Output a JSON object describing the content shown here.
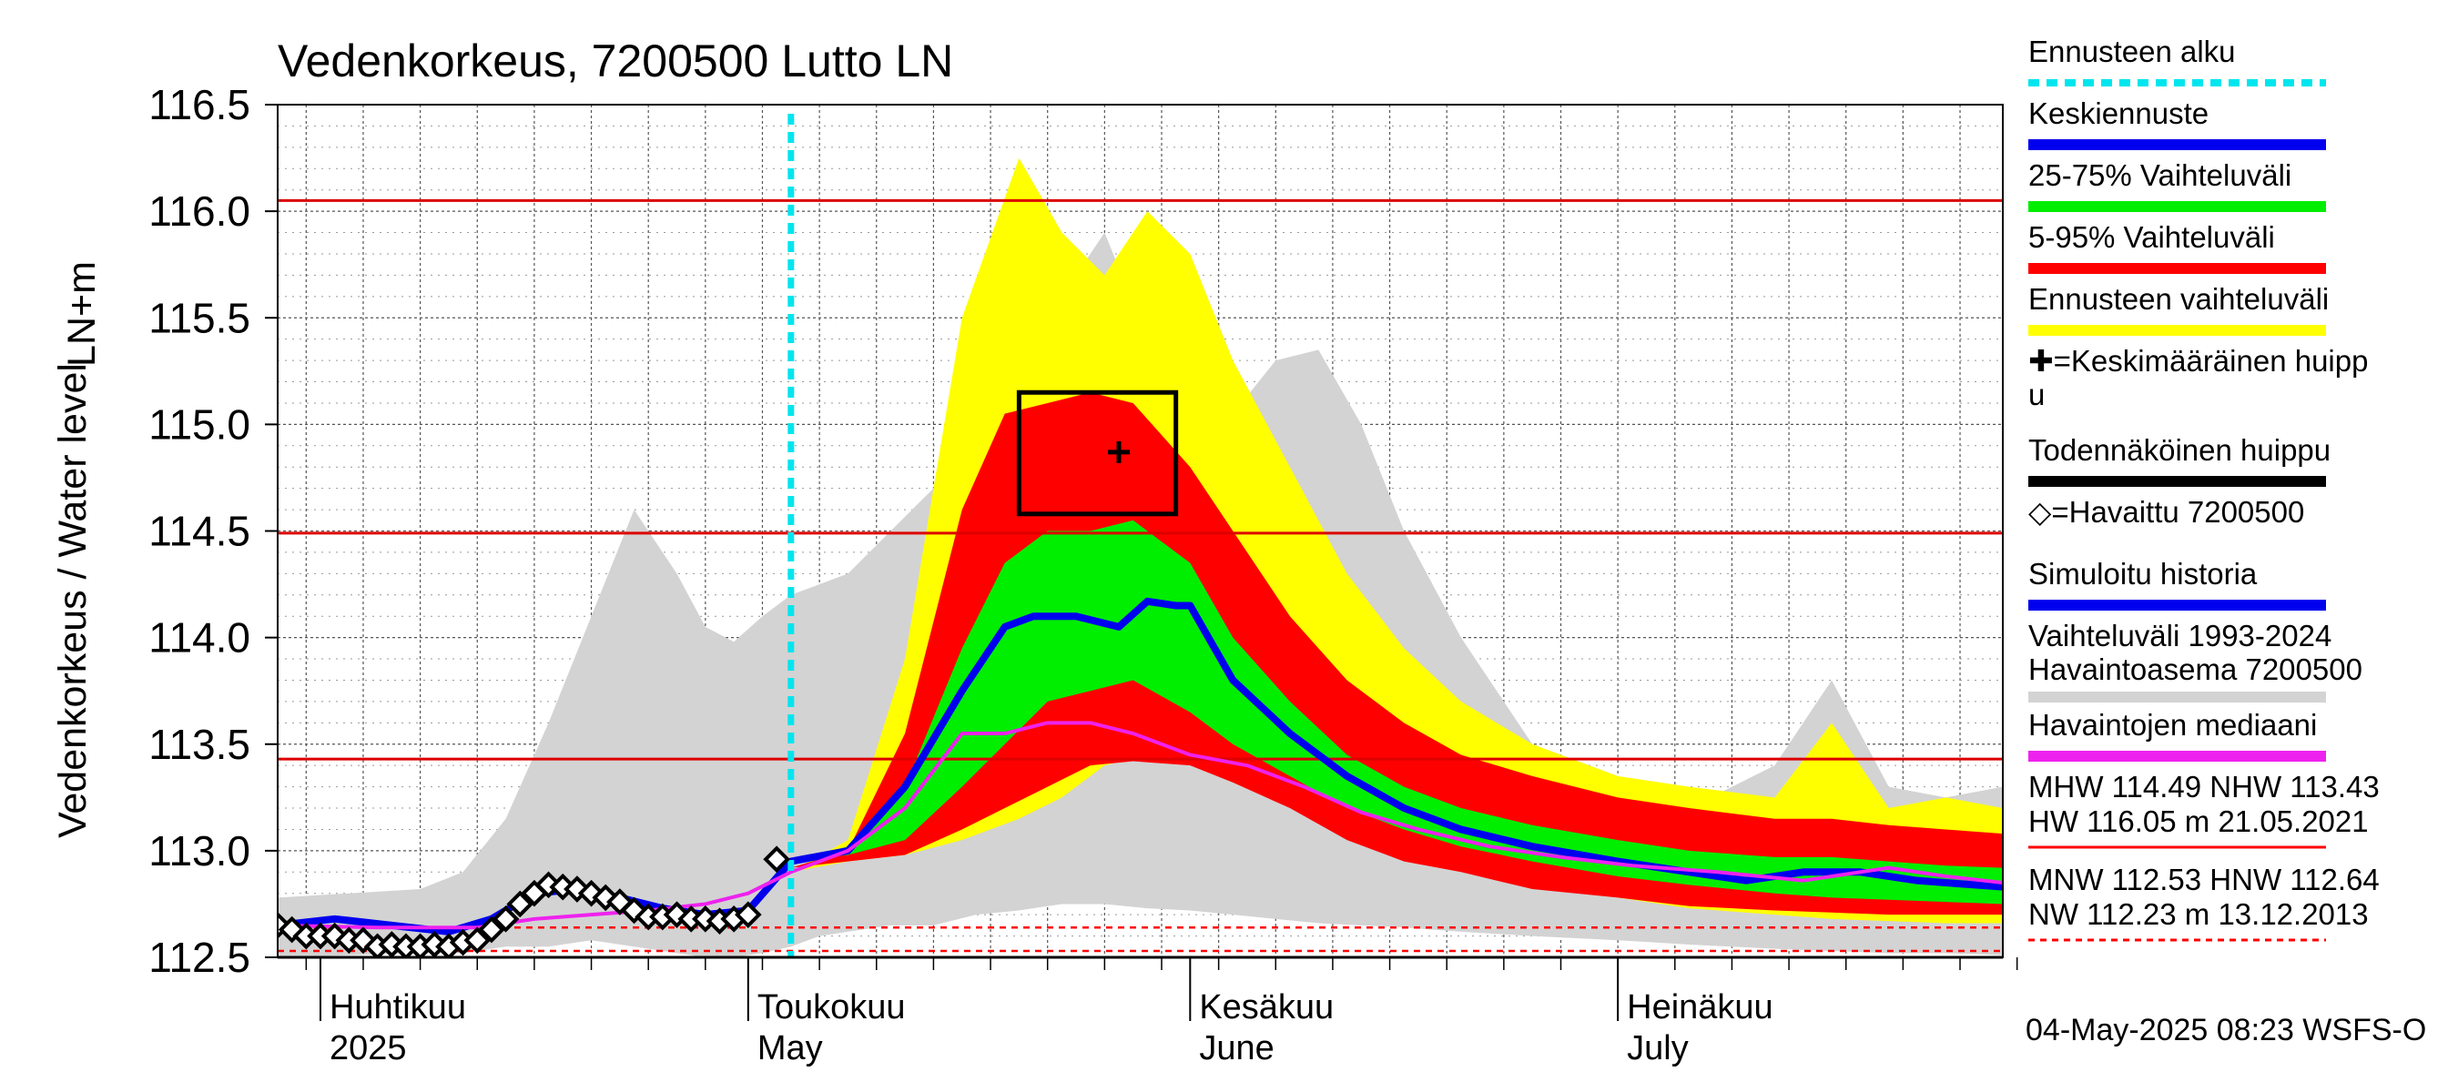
{
  "chart_data": {
    "type": "area",
    "title": "Vedenkorkeus, 7200500 Lutto LN",
    "ylabel_fi": "LN+m",
    "ylabel_en": "Vedenkorkeus / Water level",
    "ylim": [
      112.5,
      116.5
    ],
    "yticks": [
      "112.5",
      "113.0",
      "113.5",
      "114.0",
      "114.5",
      "115.0",
      "115.5",
      "116.0",
      "116.5"
    ],
    "xlim": [
      "2025-03-29",
      "2025-07-28"
    ],
    "grid": true,
    "forecast_start": "2025-05-04",
    "months": [
      {
        "fi": "Huhtikuu",
        "en": "2025",
        "date": "2025-04-01"
      },
      {
        "fi": "Toukokuu",
        "en": "May",
        "date": "2025-05-01"
      },
      {
        "fi": "Kesäkuu",
        "en": "June",
        "date": "2025-06-01"
      },
      {
        "fi": "Heinäkuu",
        "en": "July",
        "date": "2025-07-01"
      }
    ],
    "reference_lines": [
      {
        "name": "HW 116.05 m 21.05.2021",
        "value": 116.05,
        "style": "solid"
      },
      {
        "name": "MHW",
        "value": 114.49,
        "style": "solid"
      },
      {
        "name": "NHW",
        "value": 113.43,
        "style": "solid"
      },
      {
        "name": "HNW",
        "value": 112.64,
        "style": "dashed"
      },
      {
        "name": "MNW",
        "value": 112.53,
        "style": "dashed"
      }
    ],
    "probable_peak": {
      "x_start": "2025-05-20",
      "x_end": "2025-05-31",
      "y_low": 114.58,
      "y_high": 115.15
    },
    "mean_peak": {
      "x": "2025-05-27",
      "y": 114.87
    },
    "historical_range": {
      "x": [
        "2025-03-29",
        "2025-04-08",
        "2025-04-11",
        "2025-04-14",
        "2025-04-17",
        "2025-04-20",
        "2025-04-23",
        "2025-04-26",
        "2025-04-28",
        "2025-04-30",
        "2025-05-02",
        "2025-05-04",
        "2025-05-06",
        "2025-05-08",
        "2025-05-11",
        "2025-05-14",
        "2025-05-17",
        "2025-05-20",
        "2025-05-23",
        "2025-05-26",
        "2025-05-29",
        "2025-06-01",
        "2025-06-04",
        "2025-06-07",
        "2025-06-10",
        "2025-06-13",
        "2025-06-16",
        "2025-06-20",
        "2025-06-25",
        "2025-07-01",
        "2025-07-06",
        "2025-07-12",
        "2025-07-16",
        "2025-07-20",
        "2025-07-24",
        "2025-07-28"
      ],
      "high": [
        112.78,
        112.82,
        112.9,
        113.15,
        113.6,
        114.1,
        114.6,
        114.3,
        114.05,
        113.98,
        114.1,
        114.2,
        114.25,
        114.3,
        114.5,
        114.7,
        114.6,
        114.8,
        115.6,
        115.9,
        115.4,
        115.2,
        115.05,
        115.3,
        115.35,
        115.0,
        114.5,
        114.0,
        113.5,
        113.35,
        113.2,
        113.4,
        113.8,
        113.3,
        113.25,
        113.3
      ],
      "low": [
        112.5,
        112.52,
        112.52,
        112.55,
        112.55,
        112.58,
        112.55,
        112.52,
        112.5,
        112.5,
        112.52,
        112.55,
        112.6,
        112.62,
        112.65,
        112.65,
        112.7,
        112.72,
        112.75,
        112.75,
        112.73,
        112.72,
        112.7,
        112.68,
        112.66,
        112.65,
        112.64,
        112.62,
        112.6,
        112.58,
        112.56,
        112.54,
        112.53,
        112.52,
        112.52,
        112.51
      ]
    },
    "forecast_range": {
      "x": [
        "2025-05-04",
        "2025-05-08",
        "2025-05-12",
        "2025-05-16",
        "2025-05-20",
        "2025-05-23",
        "2025-05-26",
        "2025-05-29",
        "2025-06-01",
        "2025-06-04",
        "2025-06-08",
        "2025-06-12",
        "2025-06-16",
        "2025-06-20",
        "2025-06-25",
        "2025-07-01",
        "2025-07-06",
        "2025-07-12",
        "2025-07-16",
        "2025-07-20",
        "2025-07-24",
        "2025-07-28"
      ],
      "high": [
        112.9,
        113.05,
        113.9,
        115.5,
        116.25,
        115.9,
        115.7,
        116.0,
        115.8,
        115.3,
        114.8,
        114.3,
        113.95,
        113.7,
        113.5,
        113.35,
        113.3,
        113.25,
        113.6,
        113.2,
        113.25,
        113.2
      ],
      "low": [
        112.9,
        112.95,
        112.98,
        113.05,
        113.15,
        113.25,
        113.4,
        113.45,
        113.42,
        113.35,
        113.25,
        113.1,
        113.0,
        112.95,
        112.85,
        112.78,
        112.73,
        112.7,
        112.68,
        112.67,
        112.66,
        112.66
      ]
    },
    "range_5_95": {
      "x": [
        "2025-05-04",
        "2025-05-08",
        "2025-05-12",
        "2025-05-16",
        "2025-05-19",
        "2025-05-22",
        "2025-05-25",
        "2025-05-28",
        "2025-06-01",
        "2025-06-04",
        "2025-06-08",
        "2025-06-12",
        "2025-06-16",
        "2025-06-20",
        "2025-06-25",
        "2025-07-01",
        "2025-07-06",
        "2025-07-12",
        "2025-07-16",
        "2025-07-20",
        "2025-07-24",
        "2025-07-28"
      ],
      "high": [
        112.92,
        113.0,
        113.55,
        114.6,
        115.05,
        115.1,
        115.15,
        115.1,
        114.8,
        114.5,
        114.1,
        113.8,
        113.6,
        113.45,
        113.35,
        113.25,
        113.2,
        113.15,
        113.15,
        113.12,
        113.1,
        113.08
      ],
      "low": [
        112.92,
        112.95,
        112.98,
        113.1,
        113.2,
        113.3,
        113.4,
        113.42,
        113.4,
        113.32,
        113.2,
        113.05,
        112.95,
        112.9,
        112.82,
        112.78,
        112.74,
        112.72,
        112.71,
        112.7,
        112.7,
        112.7
      ]
    },
    "range_25_75": {
      "x": [
        "2025-05-04",
        "2025-05-08",
        "2025-05-12",
        "2025-05-16",
        "2025-05-19",
        "2025-05-22",
        "2025-05-25",
        "2025-05-28",
        "2025-06-01",
        "2025-06-04",
        "2025-06-08",
        "2025-06-12",
        "2025-06-16",
        "2025-06-20",
        "2025-06-25",
        "2025-07-01",
        "2025-07-06",
        "2025-07-12",
        "2025-07-16",
        "2025-07-20",
        "2025-07-24",
        "2025-07-28"
      ],
      "high": [
        112.95,
        113.02,
        113.3,
        113.95,
        114.35,
        114.5,
        114.5,
        114.55,
        114.35,
        114.0,
        113.7,
        113.45,
        113.3,
        113.2,
        113.12,
        113.05,
        113.0,
        112.97,
        112.97,
        112.95,
        112.93,
        112.92
      ],
      "low": [
        112.95,
        112.98,
        113.05,
        113.3,
        113.5,
        113.7,
        113.75,
        113.8,
        113.65,
        113.5,
        113.35,
        113.2,
        113.1,
        113.02,
        112.95,
        112.88,
        112.84,
        112.8,
        112.78,
        112.77,
        112.76,
        112.75
      ]
    },
    "series": [
      {
        "name": "Keskiennuste",
        "color": "#0000ee",
        "x": [
          "2025-03-29",
          "2025-04-02",
          "2025-04-06",
          "2025-04-10",
          "2025-04-13",
          "2025-04-16",
          "2025-04-19",
          "2025-04-22",
          "2025-04-25",
          "2025-04-28",
          "2025-05-01",
          "2025-05-04",
          "2025-05-08",
          "2025-05-12",
          "2025-05-16",
          "2025-05-19",
          "2025-05-21",
          "2025-05-24",
          "2025-05-27",
          "2025-05-29",
          "2025-05-31",
          "2025-06-01",
          "2025-06-04",
          "2025-06-08",
          "2025-06-12",
          "2025-06-16",
          "2025-06-20",
          "2025-06-25",
          "2025-07-01",
          "2025-07-06",
          "2025-07-10",
          "2025-07-14",
          "2025-07-18",
          "2025-07-22",
          "2025-07-28"
        ],
        "y": [
          112.65,
          112.68,
          112.65,
          112.62,
          112.68,
          112.8,
          112.82,
          112.78,
          112.73,
          112.7,
          112.72,
          112.95,
          113.0,
          113.3,
          113.75,
          114.05,
          114.1,
          114.1,
          114.05,
          114.17,
          114.15,
          114.15,
          113.8,
          113.55,
          113.35,
          113.2,
          113.1,
          113.02,
          112.95,
          112.9,
          112.86,
          112.9,
          112.9,
          112.86,
          112.83
        ]
      },
      {
        "name": "Havaintojen mediaani",
        "color": "#ee22ee",
        "x": [
          "2025-03-29",
          "2025-04-05",
          "2025-04-12",
          "2025-04-16",
          "2025-04-20",
          "2025-04-24",
          "2025-04-28",
          "2025-05-01",
          "2025-05-04",
          "2025-05-08",
          "2025-05-12",
          "2025-05-16",
          "2025-05-19",
          "2025-05-22",
          "2025-05-25",
          "2025-05-28",
          "2025-06-01",
          "2025-06-05",
          "2025-06-09",
          "2025-06-13",
          "2025-06-17",
          "2025-06-22",
          "2025-06-27",
          "2025-07-02",
          "2025-07-08",
          "2025-07-14",
          "2025-07-20",
          "2025-07-24",
          "2025-07-28"
        ],
        "y": [
          112.65,
          112.64,
          112.64,
          112.68,
          112.7,
          112.72,
          112.75,
          112.8,
          112.9,
          113.0,
          113.2,
          113.55,
          113.55,
          113.6,
          113.6,
          113.55,
          113.45,
          113.4,
          113.3,
          113.18,
          113.1,
          113.02,
          112.97,
          112.93,
          112.9,
          112.86,
          112.92,
          112.88,
          112.85
        ]
      }
    ],
    "observed": {
      "name": "Havaittu 7200500",
      "x": [
        "2025-03-29",
        "2025-03-30",
        "2025-03-31",
        "2025-04-01",
        "2025-04-02",
        "2025-04-03",
        "2025-04-04",
        "2025-04-05",
        "2025-04-06",
        "2025-04-07",
        "2025-04-08",
        "2025-04-09",
        "2025-04-10",
        "2025-04-11",
        "2025-04-12",
        "2025-04-13",
        "2025-04-14",
        "2025-04-15",
        "2025-04-16",
        "2025-04-17",
        "2025-04-18",
        "2025-04-19",
        "2025-04-20",
        "2025-04-21",
        "2025-04-22",
        "2025-04-23",
        "2025-04-24",
        "2025-04-25",
        "2025-04-26",
        "2025-04-27",
        "2025-04-28",
        "2025-04-29",
        "2025-04-30",
        "2025-05-01",
        "2025-05-03"
      ],
      "y": [
        112.65,
        112.63,
        112.6,
        112.6,
        112.6,
        112.58,
        112.58,
        112.55,
        112.56,
        112.55,
        112.55,
        112.56,
        112.55,
        112.57,
        112.58,
        112.63,
        112.68,
        112.75,
        112.8,
        112.84,
        112.83,
        112.82,
        112.8,
        112.78,
        112.76,
        112.72,
        112.69,
        112.69,
        112.7,
        112.68,
        112.68,
        112.67,
        112.68,
        112.7,
        112.96
      ]
    },
    "legend": [
      {
        "label": "Ennusteen alku",
        "color": "#00e5ee",
        "style": "dashed"
      },
      {
        "label": "Keskiennuste",
        "color": "#0000ee",
        "style": "line"
      },
      {
        "label": "25-75% Vaihteluväli",
        "color": "#00ee00",
        "style": "line"
      },
      {
        "label": "5-95% Vaihteluväli",
        "color": "#ff0000",
        "style": "line"
      },
      {
        "label": "Ennusteen vaihteluväli",
        "color": "#ffff00",
        "style": "line"
      },
      {
        "label": "✚=Keskimääräinen huipp",
        "label2": "u",
        "color": "",
        "style": "none"
      },
      {
        "label": "Todennäköinen huippu",
        "color": "#000000",
        "style": "line"
      },
      {
        "label": "◇=Havaittu 7200500",
        "color": "",
        "style": "none"
      },
      {
        "label": "Simuloitu historia",
        "color": "#0000ee",
        "style": "line"
      },
      {
        "label": "Vaihteluväli 1993-2024",
        "label2": " Havaintoasema 7200500",
        "color": "#d3d3d3",
        "style": "line"
      },
      {
        "label": "Havaintojen mediaani",
        "color": "#ee22ee",
        "style": "line"
      }
    ],
    "stats": [
      {
        "line1": "MHW 114.49 NHW 113.43",
        "line2": "HW 116.05 m 21.05.2021",
        "color": "#ff0000",
        "style": "solid"
      },
      {
        "line1": "MNW 112.53 HNW 112.64",
        "line2": "NW 112.23 m 13.12.2013",
        "color": "#ff0000",
        "style": "dashed"
      }
    ],
    "footer": "04-May-2025 08:23 WSFS-O"
  }
}
